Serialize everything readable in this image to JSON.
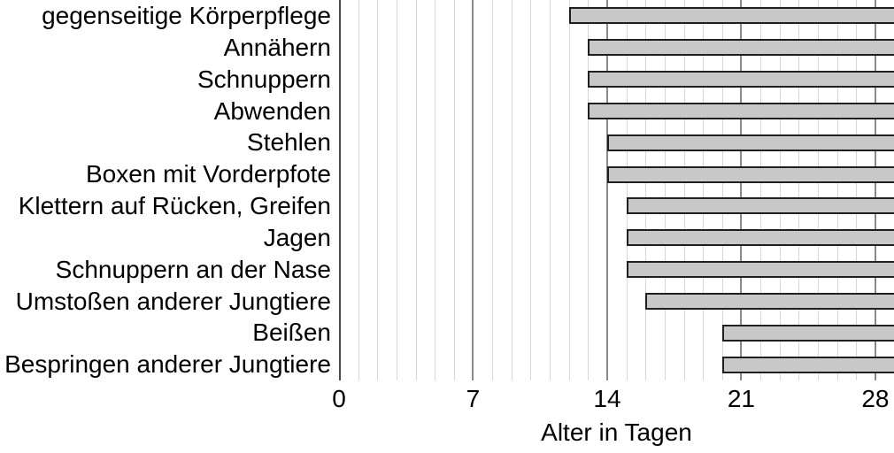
{
  "chart_data": {
    "type": "bar",
    "orientation": "horizontal",
    "title": "",
    "xlabel": "Alter in Tagen",
    "ylabel": "",
    "categories": [
      "gegenseitige Körperpflege",
      "Annähern",
      "Schnuppern",
      "Abwenden",
      "Stehlen",
      "Boxen mit Vorderpfote",
      "Klettern auf Rücken, Greifen",
      "Jagen",
      "Schnuppern an der Nase",
      "Umstoßen anderer Jungtiere",
      "Beißen",
      "Bespringen anderer Jungtiere"
    ],
    "values": [
      12,
      13,
      13,
      13,
      14,
      14,
      15,
      15,
      15,
      16,
      20,
      20
    ],
    "bars_extend_to_right_edge": true,
    "x_ticks": [
      "0",
      "7",
      "14",
      "21",
      "28"
    ],
    "x_tick_values": [
      0,
      7,
      14,
      21,
      28
    ],
    "x_minor_step": 1,
    "xlim": [
      0,
      29
    ],
    "grid": "vertical, minor every 1 day, major every 7 days",
    "legend": "none",
    "colors": {
      "bar_fill": "#c8c8c8",
      "bar_border": "#1f1f1f",
      "grid_minor": "#d6d6d6",
      "grid_major": "#8a8a8a",
      "axis_line": "#4a4a4a",
      "text": "#000000"
    }
  }
}
